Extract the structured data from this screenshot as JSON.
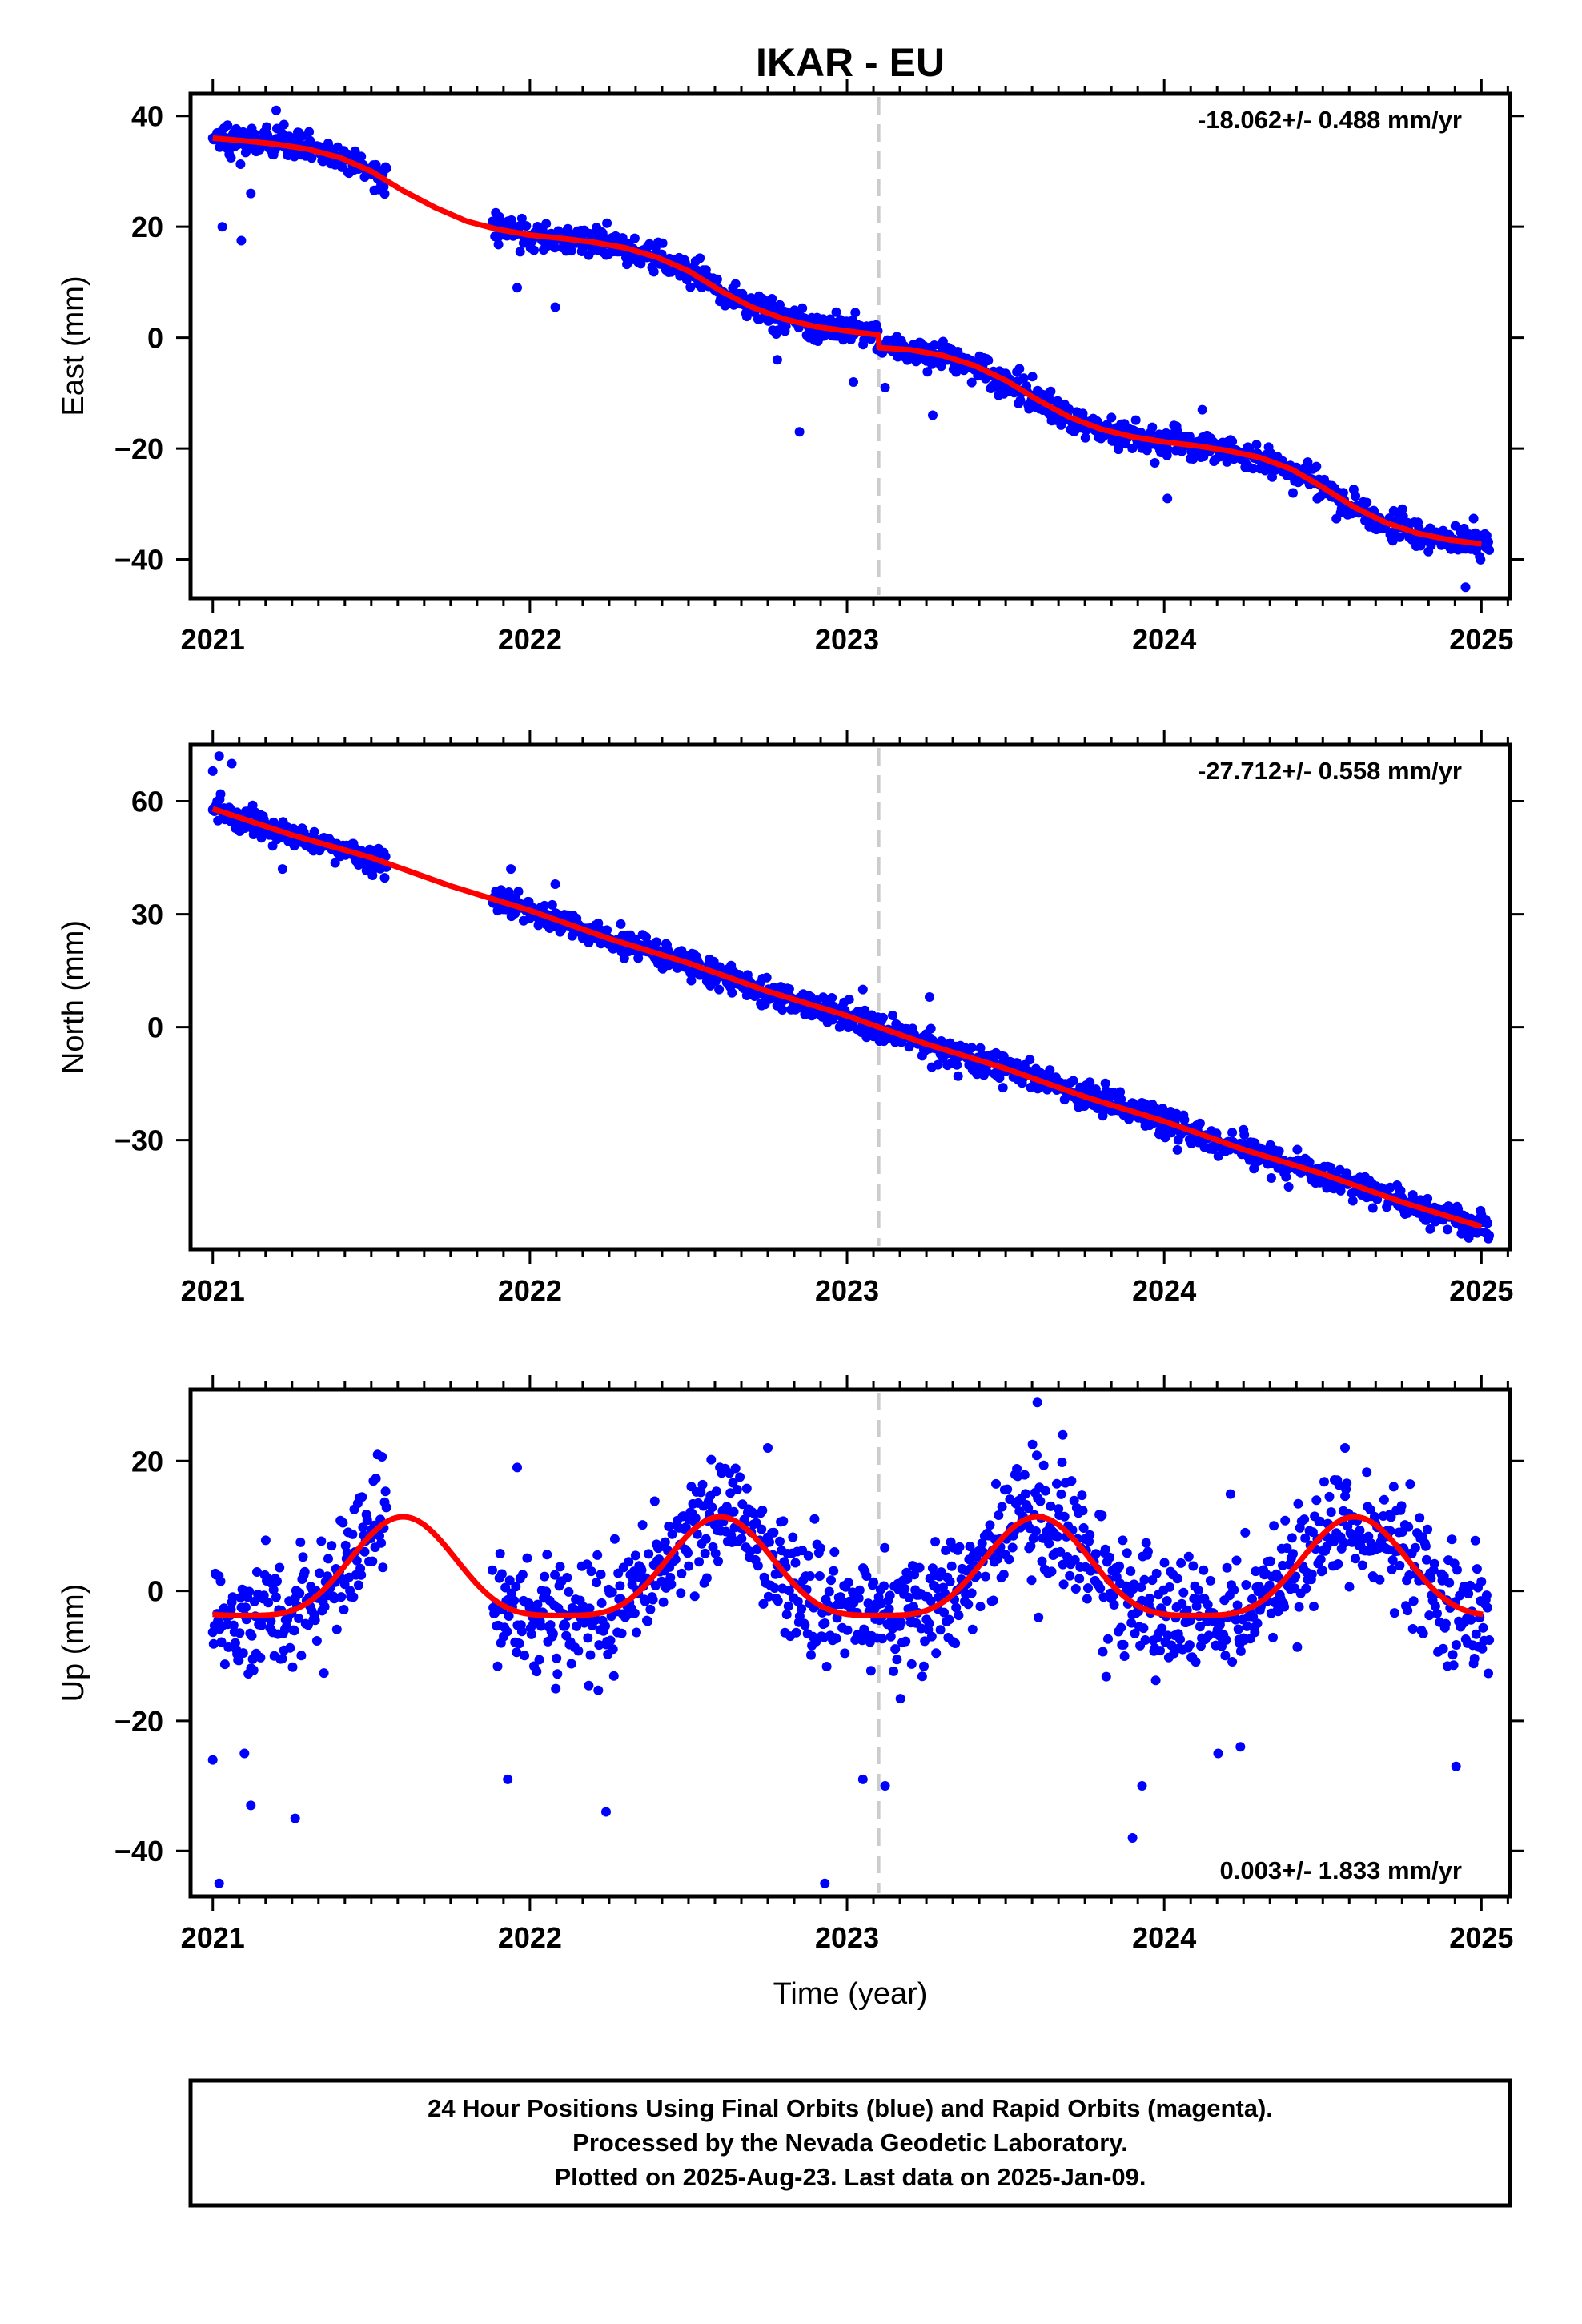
{
  "chart_data": [
    {
      "type": "scatter",
      "panel": "east",
      "ylabel": "East (mm)",
      "xlim": [
        2020.93,
        2025.09
      ],
      "ylim": [
        -47,
        44
      ],
      "xticks": [
        2021,
        2022,
        2023,
        2024,
        2025
      ],
      "yticks": [
        40,
        20,
        0,
        -20,
        -40
      ],
      "ytick_labels": [
        "40",
        "20",
        "0",
        "−20",
        "−40"
      ],
      "rate_label": "-18.062+/- 0.488 mm/yr",
      "rate_label_position": "top-right",
      "equipment_change_line": 2023.1,
      "model_series": {
        "name": "model",
        "color": "#ff0000",
        "x": [
          2021.0,
          2021.1,
          2021.2,
          2021.3,
          2021.4,
          2021.5,
          2021.6,
          2021.7,
          2021.8,
          2021.9,
          2022.0,
          2022.1,
          2022.2,
          2022.3,
          2022.4,
          2022.5,
          2022.6,
          2022.7,
          2022.8,
          2022.9,
          2023.0,
          2023.099,
          2023.101,
          2023.2,
          2023.3,
          2023.4,
          2023.5,
          2023.6,
          2023.7,
          2023.8,
          2023.9,
          2024.0,
          2024.1,
          2024.2,
          2024.3,
          2024.4,
          2024.5,
          2024.6,
          2024.7,
          2024.8,
          2024.9,
          2025.0
        ],
        "y": [
          36.0,
          35.5,
          34.9,
          34.0,
          32.5,
          30.0,
          26.5,
          23.5,
          21.0,
          19.5,
          18.5,
          17.9,
          17.2,
          16.2,
          14.5,
          12.0,
          8.5,
          5.5,
          3.4,
          2.0,
          1.2,
          0.5,
          -1.8,
          -2.2,
          -3.2,
          -5.0,
          -7.7,
          -11.2,
          -14.3,
          -16.5,
          -17.9,
          -18.8,
          -19.5,
          -20.4,
          -21.6,
          -23.7,
          -27.0,
          -30.6,
          -33.4,
          -35.3,
          -36.5,
          -37.2
        ]
      },
      "observations": {
        "name": "24 hour positions",
        "color": "#0000ff",
        "approx_daily_points": true,
        "data_gap": [
          2021.55,
          2021.88
        ],
        "scatter_sd_mm": 1.3,
        "outliers": [
          {
            "x": 2021.03,
            "y": 20
          },
          {
            "x": 2021.09,
            "y": 17.5
          },
          {
            "x": 2021.12,
            "y": 26
          },
          {
            "x": 2021.2,
            "y": 41
          },
          {
            "x": 2021.96,
            "y": 9
          },
          {
            "x": 2022.08,
            "y": 5.5
          },
          {
            "x": 2022.78,
            "y": -4
          },
          {
            "x": 2022.85,
            "y": -17
          },
          {
            "x": 2023.02,
            "y": -8
          },
          {
            "x": 2023.12,
            "y": -9
          },
          {
            "x": 2023.27,
            "y": -14
          },
          {
            "x": 2024.01,
            "y": -29
          },
          {
            "x": 2024.12,
            "y": -13
          },
          {
            "x": 2024.95,
            "y": -45
          }
        ]
      }
    },
    {
      "type": "scatter",
      "panel": "north",
      "ylabel": "North (mm)",
      "xlim": [
        2020.93,
        2025.09
      ],
      "ylim": [
        -59,
        75
      ],
      "xticks": [
        2021,
        2022,
        2023,
        2024,
        2025
      ],
      "yticks": [
        60,
        30,
        0,
        -30
      ],
      "ytick_labels": [
        "60",
        "30",
        "0",
        "−30"
      ],
      "rate_label": "-27.712+/- 0.558 mm/yr",
      "rate_label_position": "top-right",
      "equipment_change_line": 2023.1,
      "model_series": {
        "name": "model",
        "color": "#ff0000",
        "x": [
          2021.0,
          2021.25,
          2021.5,
          2021.75,
          2022.0,
          2022.25,
          2022.5,
          2022.75,
          2023.0,
          2023.25,
          2023.5,
          2023.75,
          2024.0,
          2024.25,
          2024.5,
          2024.75,
          2025.0
        ],
        "y": [
          58.0,
          51.0,
          45.0,
          37.5,
          31.0,
          23.5,
          17.0,
          9.5,
          3.0,
          -4.5,
          -11.0,
          -18.5,
          -25.0,
          -32.5,
          -39.0,
          -46.5,
          -53.0
        ]
      },
      "observations": {
        "name": "24 hour positions",
        "color": "#0000ff",
        "approx_daily_points": true,
        "data_gap": [
          2021.55,
          2021.88
        ],
        "scatter_sd_mm": 1.8,
        "outliers": [
          {
            "x": 2021.0,
            "y": 68
          },
          {
            "x": 2021.02,
            "y": 72
          },
          {
            "x": 2021.06,
            "y": 70
          },
          {
            "x": 2021.22,
            "y": 42
          },
          {
            "x": 2021.94,
            "y": 42
          },
          {
            "x": 2022.08,
            "y": 38
          },
          {
            "x": 2023.05,
            "y": 10
          },
          {
            "x": 2023.26,
            "y": 8
          },
          {
            "x": 2023.35,
            "y": -13
          },
          {
            "x": 2024.96,
            "y": -56
          }
        ]
      }
    },
    {
      "type": "scatter",
      "panel": "up",
      "ylabel": "Up (mm)",
      "xlabel": "Time (year)",
      "xlim": [
        2020.93,
        2025.09
      ],
      "ylim": [
        -47,
        31
      ],
      "xticks": [
        2021,
        2022,
        2023,
        2024,
        2025
      ],
      "yticks": [
        20,
        0,
        -20,
        -40
      ],
      "ytick_labels": [
        "20",
        "0",
        "−20",
        "−40"
      ],
      "rate_label": "0.003+/- 1.833 mm/yr",
      "rate_label_position": "bottom-right",
      "equipment_change_line": 2023.1,
      "model_series": {
        "name": "model",
        "color": "#ff0000",
        "seasonal": {
          "mean": 2.0,
          "amplitude": 7.6,
          "peak_phase": 0.6,
          "second_harmonic": 1.8
        },
        "x": [
          2021.0,
          2021.6,
          2021.95,
          2022.6,
          2022.95,
          2023.6,
          2023.95,
          2024.6,
          2025.0
        ],
        "y": [
          -5.5,
          9.5,
          -5.5,
          9.5,
          -5.5,
          9.0,
          -6.0,
          9.0,
          -6.0
        ]
      },
      "observations": {
        "name": "24 hour positions",
        "color": "#0000ff",
        "approx_daily_points": true,
        "data_gap": [
          2021.55,
          2021.88
        ],
        "scatter_sd_mm": 4.5,
        "outliers": [
          {
            "x": 2021.0,
            "y": -26
          },
          {
            "x": 2021.02,
            "y": -45
          },
          {
            "x": 2021.1,
            "y": -25
          },
          {
            "x": 2021.12,
            "y": -33
          },
          {
            "x": 2021.26,
            "y": -35
          },
          {
            "x": 2021.52,
            "y": 21
          },
          {
            "x": 2021.93,
            "y": -29
          },
          {
            "x": 2021.96,
            "y": 19
          },
          {
            "x": 2022.24,
            "y": -34
          },
          {
            "x": 2022.75,
            "y": 22
          },
          {
            "x": 2022.93,
            "y": -45
          },
          {
            "x": 2023.05,
            "y": -29
          },
          {
            "x": 2023.12,
            "y": -30
          },
          {
            "x": 2023.6,
            "y": 29
          },
          {
            "x": 2023.68,
            "y": 24
          },
          {
            "x": 2023.9,
            "y": -38
          },
          {
            "x": 2023.93,
            "y": -30
          },
          {
            "x": 2024.17,
            "y": -25
          },
          {
            "x": 2024.24,
            "y": -24
          },
          {
            "x": 2024.57,
            "y": 22
          },
          {
            "x": 2024.92,
            "y": -27
          }
        ]
      }
    }
  ],
  "figure": {
    "title": "IKAR - EU",
    "xtick_labels": [
      "2021",
      "2022",
      "2023",
      "2024",
      "2025"
    ]
  },
  "caption": {
    "line1": "24 Hour Positions Using Final Orbits (blue) and Rapid Orbits (magenta).",
    "line2": "Processed by the Nevada Geodetic Laboratory.",
    "line3": "Plotted on 2025-Aug-23. Last data on 2025-Jan-09."
  },
  "colors": {
    "observations": "#0000ff",
    "model": "#ff0000",
    "equipment_change_line": "#cccccc",
    "frame": "#000000"
  }
}
